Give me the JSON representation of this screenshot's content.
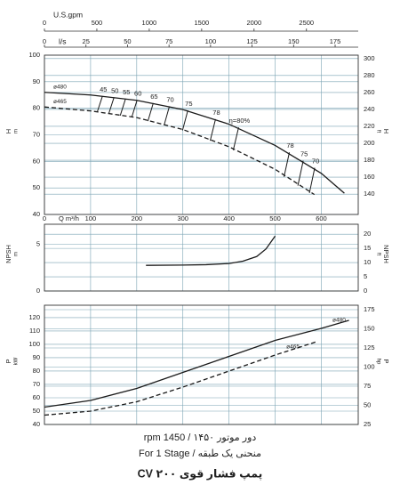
{
  "chart_data": [
    {
      "type": "line",
      "xlabel": "Q m³/h",
      "xlim": [
        0,
        680
      ],
      "xticks": [
        0,
        100,
        200,
        300,
        400,
        500,
        600
      ],
      "x2": {
        "label": "l/s",
        "xlim": [
          0,
          188.9
        ],
        "xticks": [
          0,
          25,
          50,
          75,
          100,
          125,
          150,
          175
        ]
      },
      "x3": {
        "label": "U.S.gpm",
        "xlim": [
          0,
          2994
        ],
        "xticks": [
          0,
          500,
          1000,
          1500,
          2000,
          2500
        ]
      },
      "y_label": "H",
      "y_unit": "m",
      "ylim": [
        40,
        100
      ],
      "yticks": [
        40,
        50,
        60,
        70,
        80,
        90,
        100
      ],
      "y2_label": "H",
      "y2_unit": "ft",
      "y2lim": [
        116,
        304
      ],
      "y2ticks": [
        140,
        160,
        180,
        200,
        220,
        240,
        260,
        280,
        300
      ],
      "grid": true,
      "series": [
        {
          "name": "ø480",
          "color": "#1a1a1a",
          "style": "solid",
          "x": [
            0,
            100,
            200,
            300,
            400,
            500,
            600,
            650
          ],
          "values": [
            86,
            85,
            83,
            79.5,
            74,
            66,
            55.5,
            48
          ]
        },
        {
          "name": "ø465",
          "color": "#1a1a1a",
          "style": "dashed",
          "x": [
            0,
            100,
            200,
            300,
            400,
            500,
            585
          ],
          "values": [
            80.5,
            79,
            76.5,
            72,
            65.5,
            57,
            47.5
          ]
        }
      ],
      "efficiency": {
        "x": [
          120,
          145,
          170,
          195,
          230,
          265,
          305,
          365,
          415,
          525,
          555,
          580
        ],
        "values": [
          45,
          50,
          55,
          60,
          65,
          70,
          75,
          78,
          80,
          78,
          75,
          70
        ],
        "value_labels": [
          "45",
          "50",
          "55",
          "60",
          "65",
          "70",
          "75",
          "78",
          "η=80%",
          "78",
          "75",
          "70"
        ]
      }
    },
    {
      "type": "line",
      "xlim": [
        0,
        680
      ],
      "xticks": [
        0,
        100,
        200,
        300,
        400,
        500,
        600
      ],
      "y_label": "NPSH",
      "y_unit": "m",
      "ylim": [
        0,
        7.16
      ],
      "yticks": [
        0,
        5
      ],
      "y2_label": "NPSH",
      "y2_unit": "ft",
      "y2lim": [
        0,
        23.5
      ],
      "y2ticks": [
        0,
        5,
        10,
        15,
        20
      ],
      "grid": true,
      "series": [
        {
          "color": "#1a1a1a",
          "style": "solid",
          "x": [
            220,
            300,
            350,
            400,
            430,
            460,
            480,
            500
          ],
          "values": [
            2.75,
            2.78,
            2.82,
            2.95,
            3.2,
            3.7,
            4.5,
            5.9
          ]
        }
      ]
    },
    {
      "type": "line",
      "xlim": [
        0,
        680
      ],
      "xticks": [
        0,
        100,
        200,
        300,
        400,
        500,
        600
      ],
      "y_label": "P",
      "y_unit": "kW",
      "ylim": [
        40,
        129.3
      ],
      "yticks": [
        40,
        50,
        60,
        70,
        80,
        90,
        100,
        110,
        120
      ],
      "y2_label": "P",
      "y2_unit": "hp",
      "y2lim": [
        25,
        180.8
      ],
      "y2ticks": [
        25,
        50,
        75,
        100,
        125,
        150,
        175
      ],
      "grid": true,
      "series": [
        {
          "name": "ø480",
          "color": "#1a1a1a",
          "style": "solid",
          "x": [
            0,
            100,
            200,
            300,
            400,
            500,
            600,
            660
          ],
          "values": [
            53,
            58,
            67,
            79,
            91,
            103,
            112,
            118
          ]
        },
        {
          "name": "ø465",
          "color": "#1a1a1a",
          "style": "dashed",
          "x": [
            0,
            100,
            200,
            300,
            400,
            500,
            590
          ],
          "values": [
            47,
            50,
            57,
            68,
            80,
            92,
            102
          ]
        }
      ]
    }
  ],
  "footer": {
    "rpm": "دور موتور ۱۴۵۰ / 1450 rpm",
    "stage": "منحنی یک طبقه / For 1 Stage",
    "title": "پمپ فشار قوی ۲۰۰ CV"
  }
}
